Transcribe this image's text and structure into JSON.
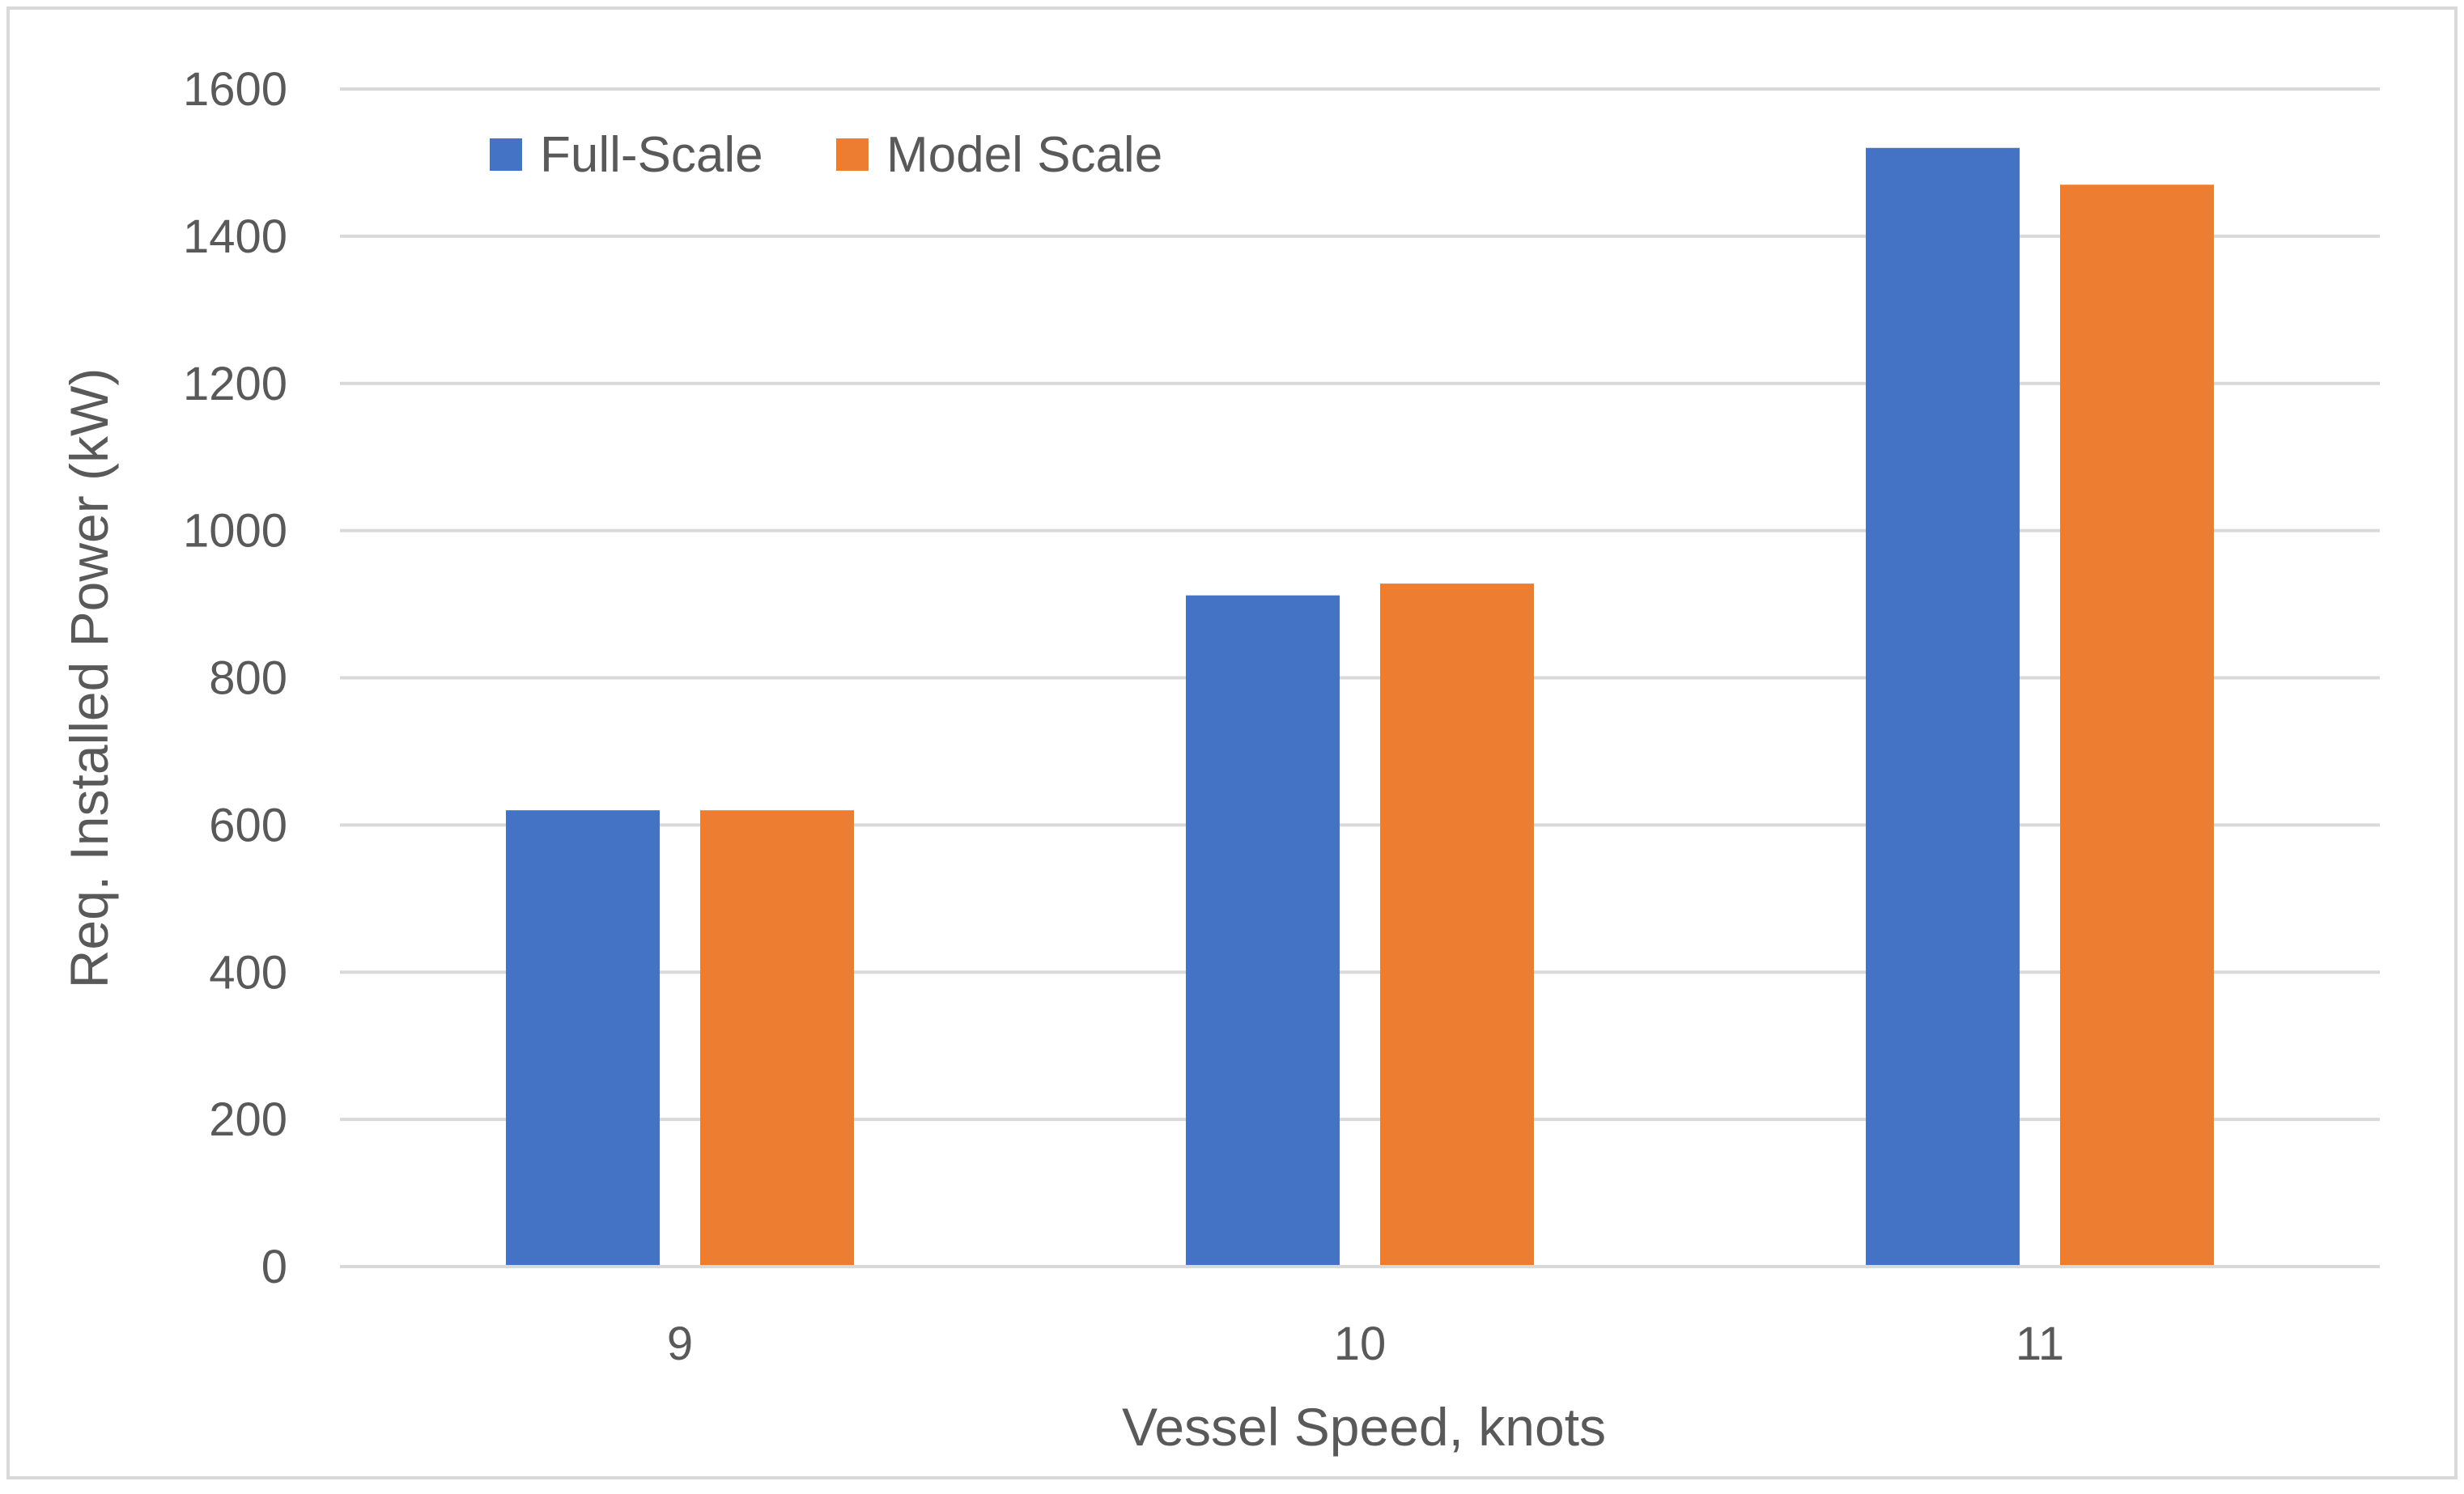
{
  "chart_data": {
    "type": "bar",
    "title": "",
    "xlabel": "Vessel Speed, knots",
    "ylabel": "Req. Installed Power (kW)",
    "categories": [
      "9",
      "10",
      "11"
    ],
    "series": [
      {
        "name": "Full-Scale",
        "color": "#4472C4",
        "values": [
          620,
          912,
          1520
        ]
      },
      {
        "name": "Model Scale",
        "color": "#ED7D31",
        "values": [
          620,
          928,
          1470
        ]
      }
    ],
    "ylim": [
      0,
      1600
    ],
    "yticks": [
      "0",
      "200",
      "400",
      "600",
      "800",
      "1000",
      "1200",
      "1400",
      "1600"
    ],
    "grid": true,
    "legend_position": "top-left"
  }
}
